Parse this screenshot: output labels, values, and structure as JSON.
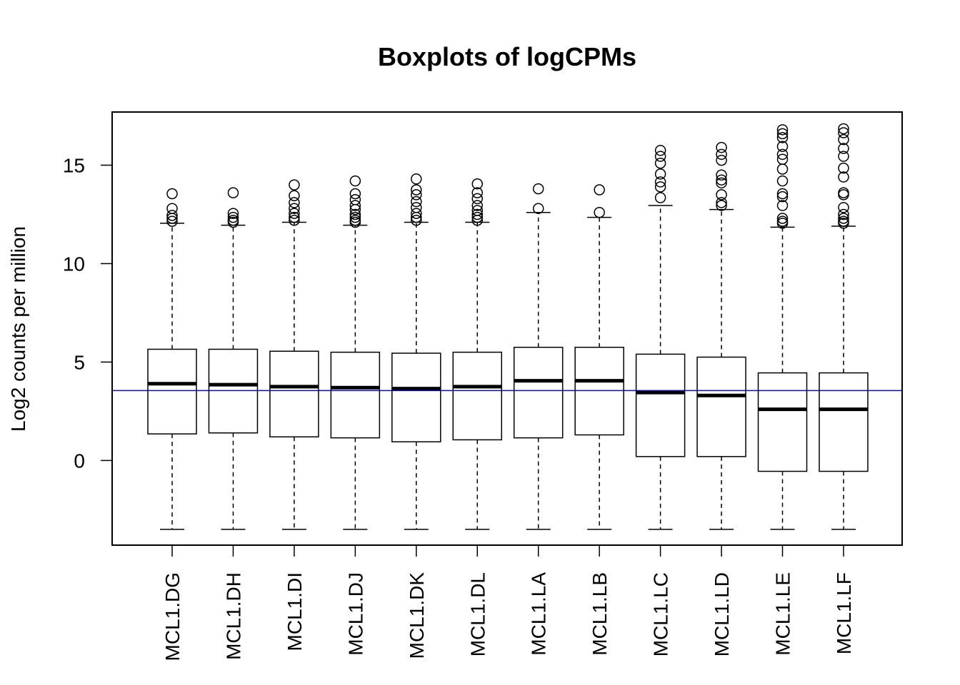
{
  "chart_data": {
    "type": "boxplot",
    "title": "Boxplots of logCPMs",
    "xlabel": "",
    "ylabel": "Log2 counts per million",
    "ylim": [
      -4.3,
      17.7
    ],
    "yticks": [
      0,
      5,
      10,
      15
    ],
    "grid": false,
    "reference_line": {
      "y": 3.55,
      "color": "#0000ff"
    },
    "categories": [
      "MCL1.DG",
      "MCL1.DH",
      "MCL1.DI",
      "MCL1.DJ",
      "MCL1.DK",
      "MCL1.DL",
      "MCL1.LA",
      "MCL1.LB",
      "MCL1.LC",
      "MCL1.LD",
      "MCL1.LE",
      "MCL1.LF"
    ],
    "boxes": [
      {
        "min": -3.5,
        "q1": 1.35,
        "median": 3.9,
        "q3": 5.65,
        "max": 12.05,
        "outliers": [
          12.15,
          12.3,
          12.45,
          12.8,
          13.55
        ]
      },
      {
        "min": -3.5,
        "q1": 1.4,
        "median": 3.85,
        "q3": 5.65,
        "max": 11.95,
        "outliers": [
          12.1,
          12.2,
          12.35,
          12.55,
          13.6
        ]
      },
      {
        "min": -3.5,
        "q1": 1.2,
        "median": 3.75,
        "q3": 5.55,
        "max": 12.1,
        "outliers": [
          12.2,
          12.35,
          12.55,
          12.8,
          13.1,
          13.45,
          14.0
        ]
      },
      {
        "min": -3.5,
        "q1": 1.15,
        "median": 3.7,
        "q3": 5.5,
        "max": 11.95,
        "outliers": [
          12.1,
          12.2,
          12.35,
          12.5,
          12.75,
          12.95,
          13.25,
          13.55,
          14.2
        ]
      },
      {
        "min": -3.5,
        "q1": 0.95,
        "median": 3.65,
        "q3": 5.45,
        "max": 12.1,
        "outliers": [
          12.2,
          12.35,
          12.55,
          12.85,
          13.15,
          13.5,
          13.75,
          14.3
        ]
      },
      {
        "min": -3.5,
        "q1": 1.05,
        "median": 3.75,
        "q3": 5.5,
        "max": 12.1,
        "outliers": [
          12.2,
          12.35,
          12.5,
          12.7,
          12.95,
          13.3,
          13.6,
          14.05
        ]
      },
      {
        "min": -3.5,
        "q1": 1.15,
        "median": 4.05,
        "q3": 5.75,
        "max": 12.6,
        "outliers": [
          12.8,
          13.8
        ]
      },
      {
        "min": -3.5,
        "q1": 1.3,
        "median": 4.05,
        "q3": 5.75,
        "max": 12.35,
        "outliers": [
          12.6,
          13.75
        ]
      },
      {
        "min": -3.5,
        "q1": 0.2,
        "median": 3.45,
        "q3": 5.4,
        "max": 12.95,
        "outliers": [
          13.35,
          13.9,
          14.15,
          14.55,
          15.1,
          15.45,
          15.75
        ]
      },
      {
        "min": -3.5,
        "q1": 0.2,
        "median": 3.3,
        "q3": 5.25,
        "max": 12.75,
        "outliers": [
          12.95,
          13.1,
          13.5,
          14.1,
          14.25,
          14.5,
          15.25,
          15.55,
          15.9
        ]
      },
      {
        "min": -3.5,
        "q1": -0.55,
        "median": 2.6,
        "q3": 4.45,
        "max": 11.85,
        "outliers": [
          12.05,
          12.15,
          12.3,
          12.95,
          13.4,
          13.55,
          14.2,
          14.8,
          15.3,
          15.55,
          15.95,
          16.4,
          16.6,
          16.8
        ]
      },
      {
        "min": -3.5,
        "q1": -0.55,
        "median": 2.6,
        "q3": 4.45,
        "max": 11.9,
        "outliers": [
          12.05,
          12.15,
          12.3,
          12.5,
          12.85,
          13.5,
          13.6,
          14.4,
          14.85,
          15.45,
          15.85,
          16.3,
          16.65,
          16.85
        ]
      }
    ]
  }
}
